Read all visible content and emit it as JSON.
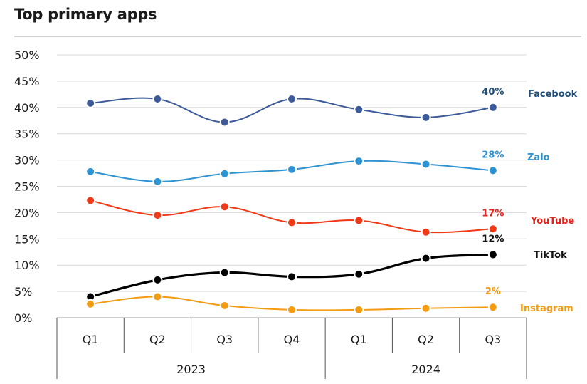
{
  "title": "Top primary apps",
  "chart_data": {
    "type": "line",
    "title": "Top primary apps",
    "categories": [
      "Q1",
      "Q2",
      "Q3",
      "Q4",
      "Q1",
      "Q2",
      "Q3"
    ],
    "groups": [
      {
        "label": "2023",
        "span": 4
      },
      {
        "label": "2024",
        "span": 3
      }
    ],
    "ylim": [
      0,
      50
    ],
    "yticks": [
      "0%",
      "5%",
      "10%",
      "15%",
      "20%",
      "25%",
      "30%",
      "35%",
      "40%",
      "45%",
      "50%"
    ],
    "grid": true,
    "series": [
      {
        "name": "Facebook",
        "color": "#3d5a99",
        "label_color": "#1f4e79",
        "last_label": "40%",
        "values": [
          40.8,
          41.6,
          37.2,
          41.6,
          39.6,
          38.1,
          40.0
        ]
      },
      {
        "name": "Zalo",
        "color": "#2e93d1",
        "label_color": "#2e93d1",
        "last_label": "28%",
        "values": [
          27.8,
          25.9,
          27.4,
          28.2,
          29.8,
          29.2,
          28.0
        ]
      },
      {
        "name": "YouTube",
        "color": "#f03a17",
        "label_color": "#e8211a",
        "last_label": "17%",
        "values": [
          22.3,
          19.5,
          21.1,
          18.1,
          18.5,
          16.3,
          16.9
        ]
      },
      {
        "name": "TikTok",
        "color": "#000000",
        "label_color": "#111111",
        "last_label": "12%",
        "values": [
          4.0,
          7.2,
          8.6,
          7.8,
          8.3,
          11.3,
          12.0
        ]
      },
      {
        "name": "Instagram",
        "color": "#f39c12",
        "label_color": "#f39c12",
        "last_label": "2%",
        "values": [
          2.6,
          4.0,
          2.3,
          1.5,
          1.5,
          1.8,
          2.0
        ]
      }
    ]
  }
}
